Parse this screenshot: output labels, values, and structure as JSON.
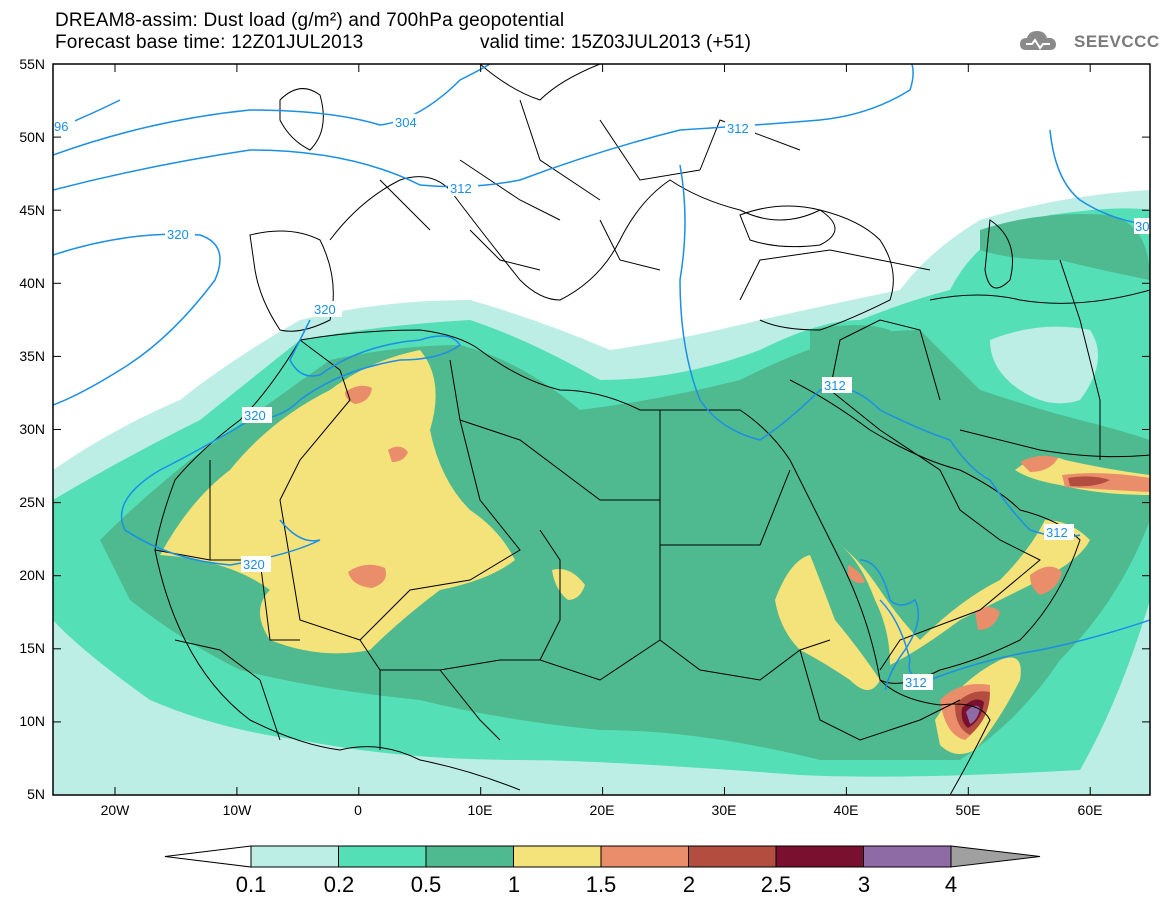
{
  "header": {
    "title_line1": "DREAM8-assim: Dust load (g/m²) and 700hPa geopotential",
    "title_line2": "Forecast base time: 12Z01JUL2013",
    "valid_time": "valid time: 15Z03JUL2013 (+51)",
    "logo_text": "SEEVCCC"
  },
  "axes": {
    "lat_labels": [
      "55N",
      "50N",
      "45N",
      "40N",
      "35N",
      "30N",
      "25N",
      "20N",
      "15N",
      "10N",
      "5N"
    ],
    "lon_labels": [
      "20W",
      "10W",
      "0",
      "10E",
      "20E",
      "30E",
      "40E",
      "50E",
      "60E"
    ]
  },
  "contours": {
    "labels": [
      "96",
      "304",
      "312",
      "312",
      "320",
      "320",
      "320",
      "320",
      "312",
      "312",
      "312",
      "30"
    ],
    "color": "#1b8fe6"
  },
  "colorbar": {
    "levels": [
      "0.1",
      "0.2",
      "0.5",
      "1",
      "1.5",
      "2",
      "2.5",
      "3",
      "4"
    ],
    "colors": [
      "#ffffff",
      "#bdeee6",
      "#55dfb7",
      "#4fb98f",
      "#f4e27a",
      "#e98d6b",
      "#b34d3f",
      "#7a1030",
      "#8f6ba6",
      "#a0a0a0"
    ]
  },
  "map_colors": {
    "land_bg": "#ffffff",
    "borders": "#000000",
    "c01": "#bdeee6",
    "c02": "#55dfb7",
    "c05": "#4fb98f",
    "c1": "#f4e27a",
    "c15": "#e98d6b",
    "c2": "#b34d3f",
    "c25": "#7a1030",
    "c3": "#8f6ba6"
  }
}
